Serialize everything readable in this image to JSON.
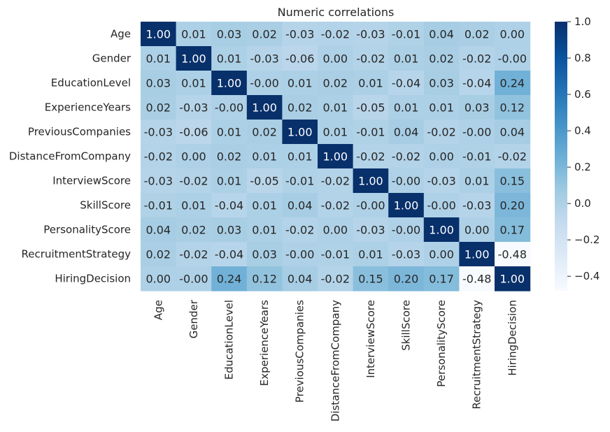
{
  "chart_data": {
    "type": "heatmap",
    "title": "Numeric correlations",
    "row_labels": [
      "Age",
      "Gender",
      "EducationLevel",
      "ExperienceYears",
      "PreviousCompanies",
      "DistanceFromCompany",
      "InterviewScore",
      "SkillScore",
      "PersonalityScore",
      "RecruitmentStrategy",
      "HiringDecision"
    ],
    "col_labels": [
      "Age",
      "Gender",
      "EducationLevel",
      "ExperienceYears",
      "PreviousCompanies",
      "DistanceFromCompany",
      "InterviewScore",
      "SkillScore",
      "PersonalityScore",
      "RecruitmentStrategy",
      "HiringDecision"
    ],
    "values": [
      [
        1.0,
        0.01,
        0.03,
        0.02,
        -0.03,
        -0.02,
        -0.03,
        -0.01,
        0.04,
        0.02,
        0.0
      ],
      [
        0.01,
        1.0,
        0.01,
        -0.03,
        -0.06,
        0.0,
        -0.02,
        0.01,
        0.02,
        -0.02,
        -0.0
      ],
      [
        0.03,
        0.01,
        1.0,
        -0.0,
        0.01,
        0.02,
        0.01,
        -0.04,
        0.03,
        -0.04,
        0.24
      ],
      [
        0.02,
        -0.03,
        -0.0,
        1.0,
        0.02,
        0.01,
        -0.05,
        0.01,
        0.01,
        0.03,
        0.12
      ],
      [
        -0.03,
        -0.06,
        0.01,
        0.02,
        1.0,
        0.01,
        -0.01,
        0.04,
        -0.02,
        -0.0,
        0.04
      ],
      [
        -0.02,
        0.0,
        0.02,
        0.01,
        0.01,
        1.0,
        -0.02,
        -0.02,
        0.0,
        -0.01,
        -0.02
      ],
      [
        -0.03,
        -0.02,
        0.01,
        -0.05,
        -0.01,
        -0.02,
        1.0,
        -0.0,
        -0.03,
        0.01,
        0.15
      ],
      [
        -0.01,
        0.01,
        -0.04,
        0.01,
        0.04,
        -0.02,
        -0.0,
        1.0,
        -0.0,
        -0.03,
        0.2
      ],
      [
        0.04,
        0.02,
        0.03,
        0.01,
        -0.02,
        0.0,
        -0.03,
        -0.0,
        1.0,
        0.0,
        0.17
      ],
      [
        0.02,
        -0.02,
        -0.04,
        0.03,
        -0.0,
        -0.01,
        0.01,
        -0.03,
        0.0,
        1.0,
        -0.48
      ],
      [
        0.0,
        -0.0,
        0.24,
        0.12,
        0.04,
        -0.02,
        0.15,
        0.2,
        0.17,
        -0.48,
        1.0
      ]
    ],
    "value_labels": [
      [
        "1.00",
        "0.01",
        "0.03",
        "0.02",
        "-0.03",
        "-0.02",
        "-0.03",
        "-0.01",
        "0.04",
        "0.02",
        "0.00"
      ],
      [
        "0.01",
        "1.00",
        "0.01",
        "-0.03",
        "-0.06",
        "0.00",
        "-0.02",
        "0.01",
        "0.02",
        "-0.02",
        "-0.00"
      ],
      [
        "0.03",
        "0.01",
        "1.00",
        "-0.00",
        "0.01",
        "0.02",
        "0.01",
        "-0.04",
        "0.03",
        "-0.04",
        "0.24"
      ],
      [
        "0.02",
        "-0.03",
        "-0.00",
        "1.00",
        "0.02",
        "0.01",
        "-0.05",
        "0.01",
        "0.01",
        "0.03",
        "0.12"
      ],
      [
        "-0.03",
        "-0.06",
        "0.01",
        "0.02",
        "1.00",
        "0.01",
        "-0.01",
        "0.04",
        "-0.02",
        "-0.00",
        "0.04"
      ],
      [
        "-0.02",
        "0.00",
        "0.02",
        "0.01",
        "0.01",
        "1.00",
        "-0.02",
        "-0.02",
        "0.00",
        "-0.01",
        "-0.02"
      ],
      [
        "-0.03",
        "-0.02",
        "0.01",
        "-0.05",
        "-0.01",
        "-0.02",
        "1.00",
        "-0.00",
        "-0.03",
        "0.01",
        "0.15"
      ],
      [
        "-0.01",
        "0.01",
        "-0.04",
        "0.01",
        "0.04",
        "-0.02",
        "-0.00",
        "1.00",
        "-0.00",
        "-0.03",
        "0.20"
      ],
      [
        "0.04",
        "0.02",
        "0.03",
        "0.01",
        "-0.02",
        "0.00",
        "-0.03",
        "-0.00",
        "1.00",
        "0.00",
        "0.17"
      ],
      [
        "0.02",
        "-0.02",
        "-0.04",
        "0.03",
        "-0.00",
        "-0.01",
        "0.01",
        "-0.03",
        "0.00",
        "1.00",
        "-0.48"
      ],
      [
        "0.00",
        "-0.00",
        "0.24",
        "0.12",
        "0.04",
        "-0.02",
        "0.15",
        "0.20",
        "0.17",
        "-0.48",
        "1.00"
      ]
    ],
    "colormap": "Blues",
    "vmin": -0.48,
    "vmax": 1.0,
    "colorbar": {
      "ticks": [
        1.0,
        0.8,
        0.6,
        0.4,
        0.2,
        0.0,
        -0.2,
        -0.4
      ],
      "tick_labels": [
        "1.0",
        "0.8",
        "0.6",
        "0.4",
        "0.2",
        "0.0",
        "−0.2",
        "−0.4"
      ]
    },
    "grid": false,
    "colorbar_position": "right"
  }
}
